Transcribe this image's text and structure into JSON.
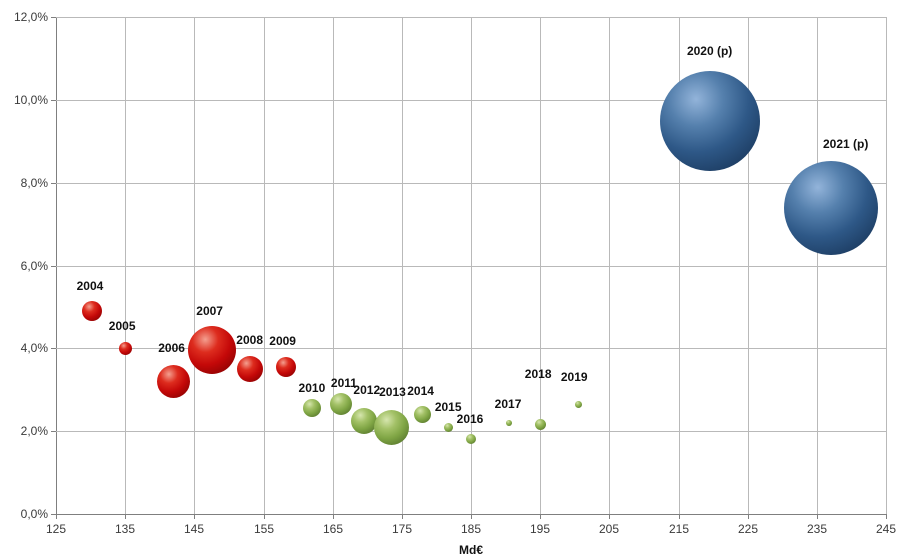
{
  "chart_data": {
    "type": "bubble",
    "title": "",
    "xlabel": "Md€",
    "ylabel": "",
    "xlim": [
      125,
      245
    ],
    "ylim": [
      0,
      12
    ],
    "grid": true,
    "x_tick_values": [
      125,
      135,
      145,
      155,
      165,
      175,
      185,
      195,
      205,
      215,
      225,
      235,
      245
    ],
    "x_tick_labels": [
      "125",
      "135",
      "145",
      "155",
      "165",
      "175",
      "185",
      "195",
      "205",
      "215",
      "225",
      "235",
      "245"
    ],
    "y_tick_values": [
      0,
      2,
      4,
      6,
      8,
      10,
      12
    ],
    "y_tick_labels": [
      "0,0%",
      "2,0%",
      "4,0%",
      "6,0%",
      "8,0%",
      "10,0%",
      "12,0%"
    ],
    "series": [
      {
        "color": "#c00606",
        "gradient": [
          "#f49f8f",
          "#dd2c1e",
          "#c40808",
          "#930303",
          "#5e0000"
        ],
        "points": [
          {
            "label": "2004",
            "x": 130.2,
            "y": 4.9,
            "r": 10,
            "label_offset": [
              -2,
              -25
            ]
          },
          {
            "label": "2005",
            "x": 135.0,
            "y": 4.0,
            "r": 6.5,
            "label_offset": [
              -3,
              -22
            ]
          },
          {
            "label": "2006",
            "x": 142.0,
            "y": 3.2,
            "r": 16.5,
            "label_offset": [
              -2,
              -33
            ]
          },
          {
            "label": "2007",
            "x": 147.5,
            "y": 3.95,
            "r": 24,
            "label_offset": [
              -2,
              -39
            ]
          },
          {
            "label": "2008",
            "x": 153.0,
            "y": 3.5,
            "r": 13,
            "label_offset": [
              0,
              -29
            ]
          },
          {
            "label": "2009",
            "x": 158.2,
            "y": 3.55,
            "r": 10,
            "label_offset": [
              -3,
              -26
            ]
          }
        ]
      },
      {
        "color": "#7fa544",
        "gradient": [
          "#d6e6ae",
          "#a3c167",
          "#7fa544",
          "#5d7d30",
          "#4c682a"
        ],
        "points": [
          {
            "label": "2010",
            "x": 162.0,
            "y": 2.55,
            "r": 9,
            "label_offset": [
              0,
              -20
            ]
          },
          {
            "label": "2011",
            "x": 166.2,
            "y": 2.65,
            "r": 11,
            "label_offset": [
              3,
              -21
            ]
          },
          {
            "label": "2012",
            "x": 169.5,
            "y": 2.25,
            "r": 13,
            "label_offset": [
              3,
              -31
            ]
          },
          {
            "label": "2013",
            "x": 173.5,
            "y": 2.1,
            "r": 17.5,
            "label_offset": [
              1,
              -35
            ]
          },
          {
            "label": "2014",
            "x": 178.0,
            "y": 2.4,
            "r": 8.5,
            "label_offset": [
              -2,
              -24
            ]
          },
          {
            "label": "2015",
            "x": 181.7,
            "y": 2.1,
            "r": 4.5,
            "label_offset": [
              0,
              -20
            ]
          },
          {
            "label": "2016",
            "x": 185.0,
            "y": 1.8,
            "r": 5,
            "label_offset": [
              -1,
              -20
            ]
          },
          {
            "label": "2017",
            "x": 190.5,
            "y": 2.2,
            "r": 3,
            "label_offset": [
              -1,
              -19
            ]
          },
          {
            "label": "2018",
            "x": 195.0,
            "y": 2.15,
            "r": 5.5,
            "label_offset": [
              -2,
              -51
            ]
          },
          {
            "label": "2019",
            "x": 200.5,
            "y": 2.65,
            "r": 3.5,
            "label_offset": [
              -4,
              -27
            ]
          }
        ]
      },
      {
        "color": "#2d5687",
        "gradient": [
          "#93b4da",
          "#5580ad",
          "#2e5887",
          "#1d3d63",
          "#15304e"
        ],
        "points": [
          {
            "label": "2020 (p)",
            "x": 219.5,
            "y": 9.5,
            "r": 50,
            "label_offset": [
              0,
              -70
            ]
          },
          {
            "label": "2021 (p)",
            "x": 237.0,
            "y": 7.4,
            "r": 47,
            "label_offset": [
              15,
              -64
            ]
          }
        ]
      }
    ]
  }
}
